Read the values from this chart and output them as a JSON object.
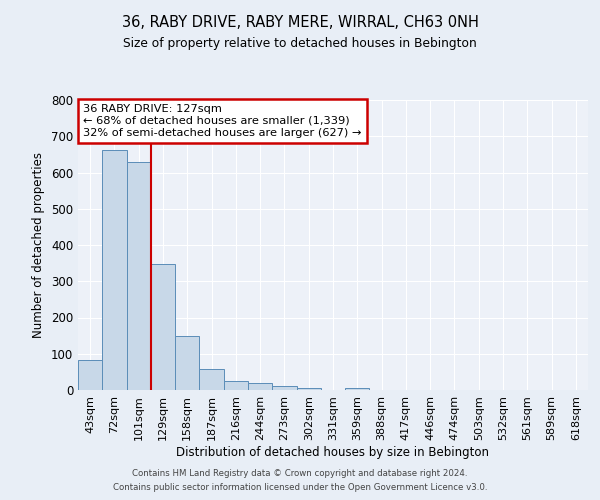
{
  "title": "36, RABY DRIVE, RABY MERE, WIRRAL, CH63 0NH",
  "subtitle": "Size of property relative to detached houses in Bebington",
  "bar_labels": [
    "43sqm",
    "72sqm",
    "101sqm",
    "129sqm",
    "158sqm",
    "187sqm",
    "216sqm",
    "244sqm",
    "273sqm",
    "302sqm",
    "331sqm",
    "359sqm",
    "388sqm",
    "417sqm",
    "446sqm",
    "474sqm",
    "503sqm",
    "532sqm",
    "561sqm",
    "589sqm",
    "618sqm"
  ],
  "bar_values": [
    82,
    663,
    630,
    348,
    148,
    57,
    25,
    18,
    10,
    5,
    0,
    6,
    0,
    0,
    0,
    0,
    0,
    0,
    0,
    0,
    0
  ],
  "bar_color": "#c8d8e8",
  "bar_edge_color": "#5b8db8",
  "bar_width": 1.0,
  "vline_index": 3,
  "vline_color": "#cc0000",
  "ylim": [
    0,
    800
  ],
  "yticks": [
    0,
    100,
    200,
    300,
    400,
    500,
    600,
    700,
    800
  ],
  "ylabel": "Number of detached properties",
  "xlabel": "Distribution of detached houses by size in Bebington",
  "annotation_title": "36 RABY DRIVE: 127sqm",
  "annotation_line1": "← 68% of detached houses are smaller (1,339)",
  "annotation_line2": "32% of semi-detached houses are larger (627) →",
  "annotation_box_color": "#cc0000",
  "footer1": "Contains HM Land Registry data © Crown copyright and database right 2024.",
  "footer2": "Contains public sector information licensed under the Open Government Licence v3.0.",
  "bg_color": "#e8eef6",
  "plot_bg_color": "#edf1f8"
}
